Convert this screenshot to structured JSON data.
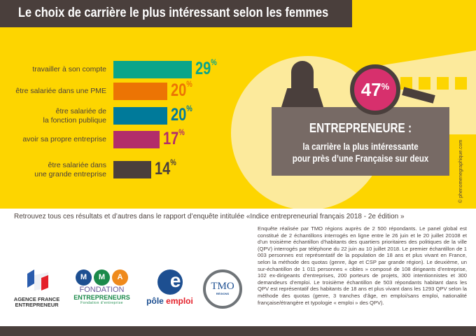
{
  "title": "Le choix de carrière le plus intéressant selon les femmes",
  "chart_data": {
    "type": "bar",
    "orientation": "horizontal",
    "categories": [
      "travailler à son compte",
      "être salariée dans une PME",
      "être salariée de la fonction publique",
      "avoir sa propre entreprise",
      "être salariée dans une grande entreprise"
    ],
    "category_lines": [
      [
        "travailler à son compte"
      ],
      [
        "être salariée dans une PME"
      ],
      [
        "être salariée de",
        "la fonction publique"
      ],
      [
        "avoir sa propre entreprise"
      ],
      [
        "être salariée dans",
        "une grande entreprise"
      ]
    ],
    "values": [
      29,
      20,
      20,
      17,
      14
    ],
    "colors": [
      "#0aa58a",
      "#ec7404",
      "#007a9a",
      "#b22d6a",
      "#4a3f3c"
    ],
    "unit": "%"
  },
  "highlight": {
    "value": "47",
    "unit": "%",
    "heading": "ENTREPRENEURE :",
    "line1": "la carrière la plus intéressante",
    "line2": "pour près d’une Française sur deux"
  },
  "credit": "© phenomenegraphique.com",
  "retrouvez": "Retrouvez tous ces résultats et d’autres dans le rapport d’enquête intitulée «Indice entrepreneurial français 2018 - 2e édition »",
  "methodology": "Enquête réalisée par TMO régions auprès de 2 500 répondants. Le panel global est constitué de 2 échantillons interrogés en ligne entre le 26 juin et le 20 juillet 20108 et d’un troisième échantillon d’habitants des quartiers prioritaires des politiques de la ville (QPV) interrogés par téléphone du 22 juin au 10 juillet 2018. Le premier échantillon de 1 003 personnes est représentatif de la population de 18 ans et plus vivant en France, selon la méthode des quotas (genre, âge et CSP par grande région). Le deuxième, un sur-échantillon de 1 011 personnes « cibles » composé de 108 dirigeants d’entreprise, 102 ex-dirigeants d’entreprises, 200 porteurs de projets, 300 intentionnistes et 300 demandeurs d’emploi. Le troisième échantillon de 503 répondants habitant dans les QPV est représentatif des habitants de 18 ans et plus vivant dans les 1293 QPV selon la méthode des quotas (genre, 3 tranches d’âge, en emploi/sans emploi, nationalité française/étrangère et typologie « emploi » des QPV).",
  "logos": {
    "afe": [
      "AGENCE FRANCE",
      "ENTREPRENEUR"
    ],
    "mma": {
      "letters": [
        "M",
        "M",
        "A"
      ],
      "l1": "FONDATION",
      "l2": "ENTREPRENEURS",
      "l3": "Fondation d’entreprise"
    },
    "pole": {
      "a": "pôle",
      "b": "emploi"
    },
    "tmo": {
      "a": "TMO",
      "b": "RÉGIONS"
    }
  }
}
